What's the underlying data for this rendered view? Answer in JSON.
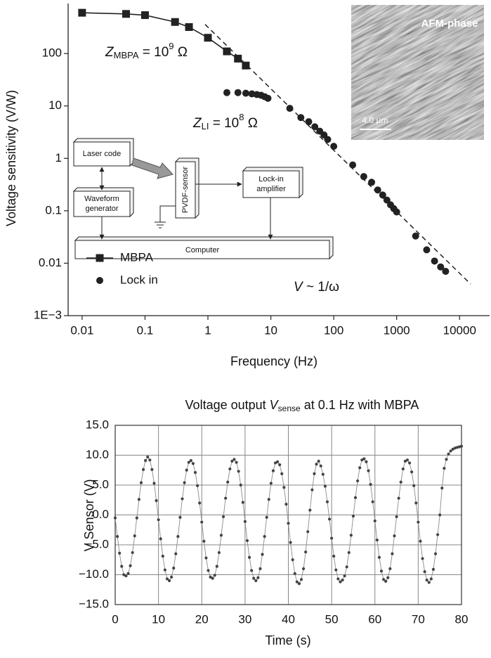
{
  "chart_data": [
    {
      "type": "line",
      "xlabel": "Frequency (Hz)",
      "ylabel": "Voltage sensitivity (V/W)",
      "xscale": "log",
      "yscale": "log",
      "xlim": [
        0.006,
        30000
      ],
      "ylim": [
        0.001,
        900
      ],
      "xticks": [
        0.01,
        0.1,
        1,
        10,
        100,
        1000,
        10000
      ],
      "yticks": [
        {
          "value": 0.001,
          "label": "1E−3"
        },
        0.01,
        0.1,
        1,
        10,
        100
      ],
      "grid": false,
      "legend": "lower left",
      "series": [
        {
          "name": "MBPA",
          "color": "#222222",
          "marker": "square",
          "connect": true,
          "x": [
            0.01,
            0.05,
            0.1,
            0.3,
            0.5,
            1,
            2,
            3,
            4
          ],
          "values": [
            600,
            570,
            540,
            400,
            320,
            200,
            110,
            80,
            59
          ]
        },
        {
          "name": "Lock in",
          "color": "#222222",
          "marker": "circle",
          "connect": false,
          "x": [
            2,
            3,
            4,
            5,
            6,
            7,
            8,
            9,
            20,
            30,
            40,
            50,
            60,
            70,
            80,
            100,
            200,
            300,
            400,
            500,
            600,
            700,
            800,
            900,
            1000,
            2000,
            3000,
            4000,
            5000,
            6000
          ],
          "values": [
            18,
            18,
            17.5,
            17,
            16.5,
            16,
            15,
            14,
            9,
            6,
            5,
            4,
            3.3,
            2.8,
            2.3,
            1.7,
            0.75,
            0.45,
            0.35,
            0.25,
            0.2,
            0.16,
            0.13,
            0.11,
            0.095,
            0.033,
            0.018,
            0.011,
            0.0085,
            0.007
          ]
        }
      ],
      "fit_line": {
        "x": [
          0.9,
          15000
        ],
        "values": [
          360,
          0.004
        ],
        "dash": true,
        "color": "#222222"
      },
      "annotations": [
        {
          "text": "Z",
          "sub": "MBPA",
          "after": " = 10",
          "sup": "9",
          "end": " Ω"
        },
        {
          "text": "Z",
          "sub": "LI",
          "after": " = 10",
          "sup": "8",
          "end": " Ω"
        },
        {
          "text": "V",
          "after": " ~ 1/ω"
        }
      ]
    },
    {
      "type": "line",
      "title": {
        "before": "Voltage output ",
        "italic": "V",
        "sub": "sense",
        "after": " at 0.1 Hz with MBPA"
      },
      "xlabel": "Time (s)",
      "ylabel": "V Sensor (V)",
      "xlim": [
        0,
        80
      ],
      "ylim": [
        -15,
        15
      ],
      "xticks": [
        0,
        10,
        20,
        30,
        40,
        50,
        60,
        70,
        80
      ],
      "yticks": [
        {
          "value": -15,
          "label": "−15.0"
        },
        {
          "value": -10,
          "label": "−10.0"
        },
        {
          "value": -5,
          "label": "−5.0"
        },
        {
          "value": 0,
          "label": "0.0"
        },
        {
          "value": 5,
          "label": "5.0"
        },
        {
          "value": 10,
          "label": "10.0"
        },
        {
          "value": 15,
          "label": "15.0"
        }
      ],
      "grid": true,
      "series": [
        {
          "color": "#444444",
          "marker": "dot",
          "connect": true,
          "x": [
            0,
            0.5,
            1,
            1.5,
            2,
            2.5,
            3,
            3.5,
            4,
            4.5,
            5,
            5.5,
            6,
            6.5,
            7,
            7.5,
            8,
            8.5,
            9,
            9.5,
            10,
            10.5,
            11,
            11.5,
            12,
            12.5,
            13,
            13.5,
            14,
            14.5,
            15,
            15.5,
            16,
            16.5,
            17,
            17.5,
            18,
            18.5,
            19,
            19.5,
            20,
            20.5,
            21,
            21.5,
            22,
            22.5,
            23,
            23.5,
            24,
            24.5,
            25,
            25.5,
            26,
            26.5,
            27,
            27.5,
            28,
            28.5,
            29,
            29.5,
            30,
            30.5,
            31,
            31.5,
            32,
            32.5,
            33,
            33.5,
            34,
            34.5,
            35,
            35.5,
            36,
            36.5,
            37,
            37.5,
            38,
            38.5,
            39,
            39.5,
            40,
            40.5,
            41,
            41.5,
            42,
            42.5,
            43,
            43.5,
            44,
            44.5,
            45,
            45.5,
            46,
            46.5,
            47,
            47.5,
            48,
            48.5,
            49,
            49.5,
            50,
            50.5,
            51,
            51.5,
            52,
            52.5,
            53,
            53.5,
            54,
            54.5,
            55,
            55.5,
            56,
            56.5,
            57,
            57.5,
            58,
            58.5,
            59,
            59.5,
            60,
            60.5,
            61,
            61.5,
            62,
            62.5,
            63,
            63.5,
            64,
            64.5,
            65,
            65.5,
            66,
            66.5,
            67,
            67.5,
            68,
            68.5,
            69,
            69.5,
            70,
            70.5,
            71,
            71.5,
            72,
            72.5,
            73,
            73.5,
            74,
            74.5,
            75,
            75.5,
            76,
            76.5,
            77,
            77.5,
            78,
            78.5,
            79,
            79.5,
            80
          ],
          "values": [
            -0.5,
            -3.6,
            -6.4,
            -8.6,
            -10.0,
            -10.2,
            -9.8,
            -8.5,
            -6.3,
            -3.5,
            -0.5,
            2.6,
            5.4,
            7.6,
            9.1,
            9.7,
            9.2,
            7.6,
            5.3,
            2.4,
            -0.8,
            -4.0,
            -6.9,
            -9.2,
            -10.7,
            -11.0,
            -10.4,
            -8.9,
            -6.5,
            -3.6,
            -0.4,
            2.7,
            5.4,
            7.5,
            8.8,
            9.1,
            8.6,
            7.1,
            4.9,
            2.0,
            -1.2,
            -4.4,
            -7.2,
            -9.3,
            -10.4,
            -10.6,
            -10.1,
            -8.6,
            -6.3,
            -3.4,
            -0.3,
            2.8,
            5.5,
            7.7,
            9.0,
            9.3,
            8.8,
            7.3,
            5.0,
            2.1,
            -1.1,
            -4.3,
            -7.1,
            -9.3,
            -10.6,
            -11.0,
            -10.5,
            -9.0,
            -6.6,
            -3.6,
            -0.4,
            2.6,
            5.3,
            7.4,
            8.7,
            8.9,
            8.4,
            6.9,
            4.6,
            1.8,
            -1.4,
            -4.6,
            -7.5,
            -9.8,
            -11.2,
            -11.5,
            -10.8,
            -9.0,
            -6.2,
            -2.8,
            0.8,
            4.2,
            6.9,
            8.5,
            9.0,
            8.2,
            6.8,
            4.8,
            2.2,
            -0.7,
            -3.9,
            -6.9,
            -9.2,
            -10.7,
            -11.2,
            -10.9,
            -10.2,
            -8.7,
            -6.3,
            -3.4,
            -0.2,
            2.9,
            5.7,
            7.9,
            9.2,
            9.4,
            8.9,
            7.4,
            5.1,
            2.2,
            -1.0,
            -4.2,
            -7.1,
            -9.4,
            -10.8,
            -11.1,
            -10.5,
            -9.0,
            -6.5,
            -3.5,
            -0.3,
            2.8,
            5.5,
            7.7,
            9.0,
            9.2,
            8.7,
            7.2,
            4.9,
            2.0,
            -1.2,
            -4.4,
            -7.3,
            -9.5,
            -10.9,
            -11.3,
            -10.7,
            -9.1,
            -6.5,
            -3.3,
            0.0,
            4.5,
            7.8,
            9.3,
            10.2,
            10.7,
            11.0,
            11.2,
            11.3,
            11.4,
            11.5
          ]
        }
      ]
    }
  ],
  "afm_image": {
    "label": "AFM-phase",
    "scale": "4.0 µm"
  },
  "diagram": {
    "nodes": [
      [
        "Laser code"
      ],
      [
        "Waveform",
        "generator"
      ],
      [
        "PVDF-sensor"
      ],
      [
        "Lock-in",
        "amplifier"
      ],
      [
        "Computer"
      ]
    ]
  }
}
